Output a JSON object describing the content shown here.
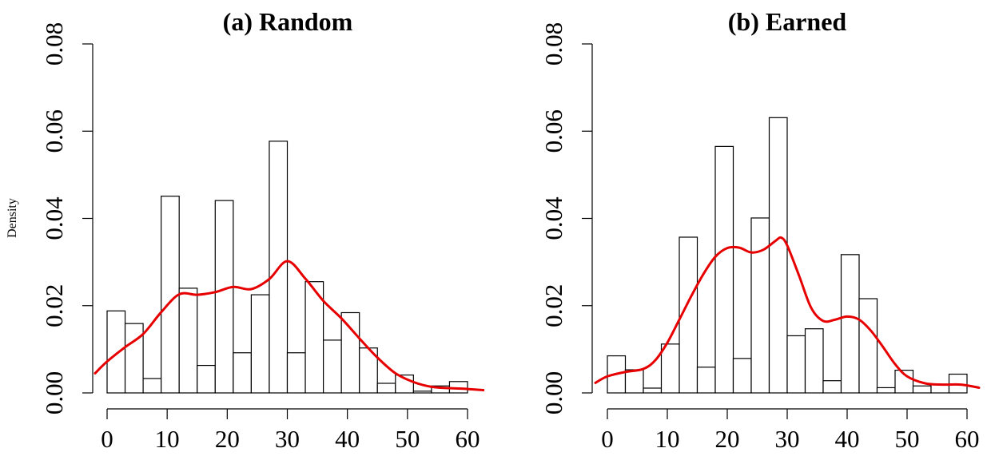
{
  "chart_data": [
    {
      "type": "bar",
      "title": "(a) Random",
      "xlabel": "",
      "ylabel": "Density",
      "xlim": [
        0,
        60
      ],
      "ylim": [
        0,
        0.08
      ],
      "x_ticks": [
        0,
        10,
        20,
        30,
        40,
        50,
        60
      ],
      "y_ticks": [
        "0.00",
        "0.02",
        "0.04",
        "0.06",
        "0.08"
      ],
      "bin_edges": [
        0,
        3,
        6,
        9,
        12,
        15,
        18,
        21,
        24,
        27,
        30,
        33,
        36,
        39,
        42,
        45,
        48,
        51,
        54,
        57,
        60
      ],
      "values": [
        0.0188,
        0.0159,
        0.0033,
        0.0451,
        0.024,
        0.0063,
        0.0441,
        0.0092,
        0.0225,
        0.0577,
        0.0092,
        0.0255,
        0.0121,
        0.0184,
        0.0103,
        0.0022,
        0.0041,
        0.0004,
        0.0016,
        0.0026
      ],
      "density_curve": {
        "color": "#e60000",
        "x": [
          -2,
          0,
          3,
          6,
          9,
          12,
          15,
          18,
          21,
          24,
          27,
          30,
          33,
          36,
          39,
          42,
          45,
          48,
          51,
          54,
          57,
          60,
          63
        ],
        "y": [
          0.0045,
          0.0072,
          0.0105,
          0.0135,
          0.0185,
          0.0226,
          0.0225,
          0.0231,
          0.0243,
          0.0238,
          0.0261,
          0.0302,
          0.0262,
          0.0211,
          0.0171,
          0.0125,
          0.0081,
          0.0045,
          0.0025,
          0.0014,
          0.0011,
          0.0009,
          0.0006
        ]
      }
    },
    {
      "type": "bar",
      "title": "(b) Earned",
      "xlabel": "",
      "ylabel": "",
      "xlim": [
        0,
        60
      ],
      "ylim": [
        0,
        0.08
      ],
      "x_ticks": [
        0,
        10,
        20,
        30,
        40,
        50,
        60
      ],
      "y_ticks": [
        "0.00",
        "0.02",
        "0.04",
        "0.06",
        "0.08"
      ],
      "bin_edges": [
        0,
        3,
        6,
        9,
        12,
        15,
        18,
        21,
        24,
        27,
        30,
        33,
        36,
        39,
        42,
        45,
        48,
        51,
        54,
        57,
        60
      ],
      "values": [
        0.0085,
        0.0053,
        0.0011,
        0.0112,
        0.0357,
        0.0059,
        0.0565,
        0.0079,
        0.0401,
        0.0631,
        0.0131,
        0.0147,
        0.0028,
        0.0317,
        0.0216,
        0.0012,
        0.0052,
        0.0016,
        0.0019,
        0.0043
      ],
      "density_curve": {
        "color": "#e60000",
        "x": [
          -2,
          0,
          3,
          6,
          8,
          10,
          12,
          14,
          16,
          18,
          20,
          22,
          24,
          26,
          28,
          29,
          30,
          32,
          34,
          36,
          38,
          40,
          42,
          44,
          46,
          48,
          50,
          53,
          56,
          59,
          62
        ],
        "y": [
          0.0023,
          0.0038,
          0.0048,
          0.0055,
          0.0075,
          0.0115,
          0.0168,
          0.0222,
          0.0272,
          0.0312,
          0.0332,
          0.0333,
          0.0322,
          0.0328,
          0.0348,
          0.0356,
          0.0338,
          0.0268,
          0.0195,
          0.0165,
          0.0168,
          0.0175,
          0.0168,
          0.0142,
          0.0105,
          0.0066,
          0.0038,
          0.0022,
          0.0019,
          0.0019,
          0.0012
        ]
      }
    }
  ]
}
